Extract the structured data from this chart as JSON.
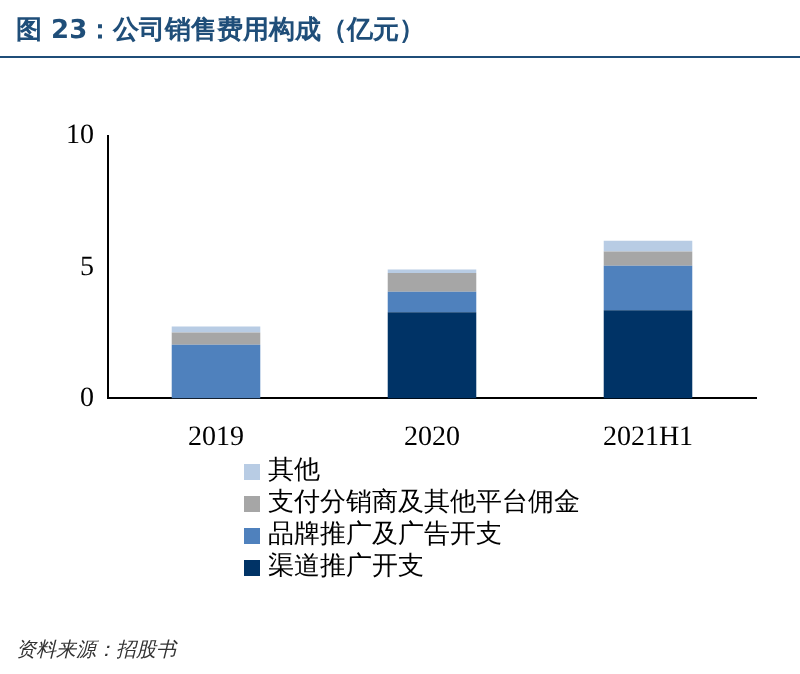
{
  "chart_data": {
    "type": "bar",
    "title": "图 23：公司销售费用构成（亿元）",
    "categories": [
      "2019",
      "2020",
      "2021H1"
    ],
    "stacked": true,
    "series": [
      {
        "name": "渠道推广开支",
        "color": "#003366",
        "values": [
          0,
          3.28,
          3.36
        ]
      },
      {
        "name": "品牌推广及广告开支",
        "color": "#4f81bd",
        "values": [
          2.04,
          0.78,
          1.7
        ]
      },
      {
        "name": "支付分销商及其他平台佣金",
        "color": "#a6a6a6",
        "values": [
          0.47,
          0.72,
          0.54
        ]
      },
      {
        "name": "其他",
        "color": "#b8cce4",
        "values": [
          0.23,
          0.13,
          0.41
        ]
      }
    ],
    "ylim": [
      0,
      10
    ],
    "yticks": [
      0,
      5,
      10
    ],
    "grid": false,
    "legend": "bottom",
    "annotations": [
      "资料来源：招股书"
    ]
  }
}
